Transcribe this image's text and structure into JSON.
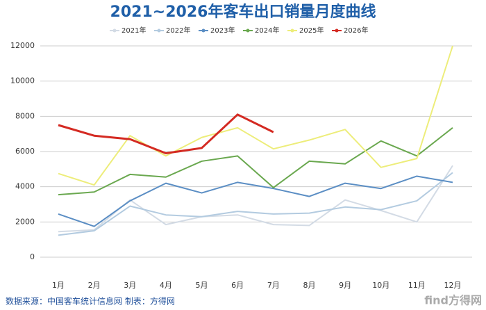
{
  "chart_data": {
    "type": "line",
    "title": "2021~2026年客车出口销量月度曲线",
    "categories": [
      "1月",
      "2月",
      "3月",
      "4月",
      "5月",
      "6月",
      "7月",
      "8月",
      "9月",
      "10月",
      "11月",
      "12月"
    ],
    "series": [
      {
        "name": "2021年",
        "color": "#d3dbe5",
        "values": [
          1450,
          1550,
          3250,
          1850,
          2300,
          2400,
          1850,
          1800,
          3250,
          2650,
          2000,
          5200
        ]
      },
      {
        "name": "2022年",
        "color": "#b3cbe0",
        "values": [
          1250,
          1500,
          2900,
          2400,
          2300,
          2600,
          2450,
          2500,
          2850,
          2700,
          3200,
          4800
        ]
      },
      {
        "name": "2023年",
        "color": "#5b8ec4",
        "values": [
          2450,
          1750,
          3200,
          4200,
          3650,
          4250,
          3900,
          3450,
          4200,
          3900,
          4600,
          4250
        ]
      },
      {
        "name": "2024年",
        "color": "#6aa84f",
        "values": [
          3550,
          3700,
          4700,
          4550,
          5450,
          5750,
          3950,
          5450,
          5300,
          6600,
          5750,
          7350
        ]
      },
      {
        "name": "2025年",
        "color": "#eded7a",
        "values": [
          4750,
          4100,
          6900,
          5750,
          6800,
          7350,
          6150,
          6650,
          7250,
          5100,
          5600,
          12000
        ]
      },
      {
        "name": "2026年",
        "color": "#d42a22",
        "values": [
          7500,
          6900,
          6700,
          5900,
          6200,
          8100,
          7100,
          null,
          null,
          null,
          null,
          null
        ]
      }
    ],
    "ylim": [
      0,
      12000
    ],
    "yticks": [
      0,
      2000,
      4000,
      6000,
      8000,
      10000,
      12000
    ],
    "grid": true,
    "footer": "数据来源：中国客车统计信息网  制表：方得网",
    "watermark": "find方得网"
  }
}
